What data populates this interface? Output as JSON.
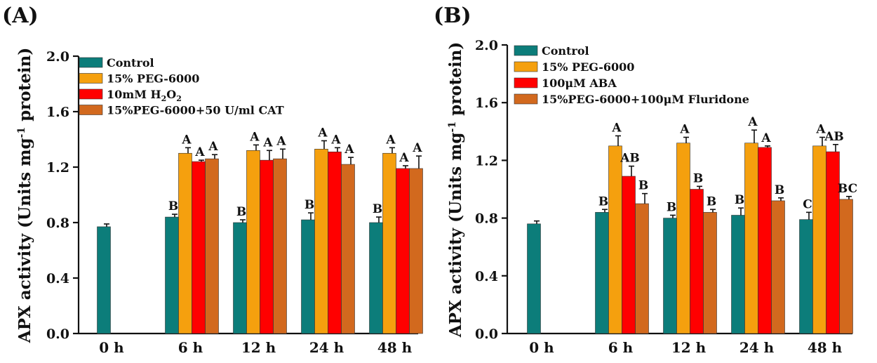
{
  "chart_data": [
    {
      "panel": "(A)",
      "type": "bar",
      "ylabel_main": "APX activity (Units mg",
      "ylabel_sup": "-1",
      "ylabel_tail": " protein)",
      "ylim": [
        0,
        2.0
      ],
      "yticks": [
        "0.0",
        "0.4",
        "0.8",
        "1.2",
        "1.6",
        "2.0"
      ],
      "categories": [
        "0 h",
        "6 h",
        "12 h",
        "24 h",
        "48 h"
      ],
      "series": [
        {
          "name": "Control",
          "legend_main": "Control",
          "color": "#0c7d7a",
          "values": [
            0.77,
            0.84,
            0.8,
            0.82,
            0.8
          ],
          "errors": [
            0.02,
            0.02,
            0.02,
            0.05,
            0.04
          ],
          "letters": [
            "",
            "B",
            "B",
            "B",
            "B"
          ]
        },
        {
          "name": "15% PEG-6000",
          "legend_main": "15% PEG-6000",
          "color": "#f5a00e",
          "values": [
            null,
            1.3,
            1.32,
            1.33,
            1.3
          ],
          "errors": [
            0,
            0.04,
            0.04,
            0.06,
            0.04
          ],
          "letters": [
            "",
            "A",
            "A",
            "A",
            "A"
          ]
        },
        {
          "name": "10mM H2O2",
          "legend_main": "10mM H",
          "legend_sub": "2",
          "legend_tail": "O",
          "legend_sub2": "2",
          "color": "#ff0000",
          "values": [
            null,
            1.24,
            1.25,
            1.31,
            1.19
          ],
          "errors": [
            0,
            0.01,
            0.07,
            0.03,
            0.02
          ],
          "letters": [
            "",
            "A",
            "A",
            "A",
            "A"
          ]
        },
        {
          "name": "15%PEG-6000+50 U/ml CAT",
          "legend_main": "15%PEG-6000+50 U/ml CAT",
          "color": "#d2691e",
          "values": [
            null,
            1.26,
            1.26,
            1.22,
            1.19
          ],
          "errors": [
            0,
            0.03,
            0.07,
            0.05,
            0.09
          ],
          "letters": [
            "",
            "A",
            "A",
            "A",
            "A"
          ]
        }
      ]
    },
    {
      "panel": "(B)",
      "type": "bar",
      "ylabel_main": "APX activity (Units mg",
      "ylabel_sup": "-1",
      "ylabel_tail": " protein)",
      "ylim": [
        0,
        2.0
      ],
      "yticks": [
        "0.0",
        "0.4",
        "0.8",
        "1.2",
        "1.6",
        "2.0"
      ],
      "categories": [
        "0 h",
        "6 h",
        "12 h",
        "24 h",
        "48 h"
      ],
      "series": [
        {
          "name": "Control",
          "legend_main": "Control",
          "color": "#0c7d7a",
          "values": [
            0.76,
            0.84,
            0.8,
            0.82,
            0.79
          ],
          "errors": [
            0.02,
            0.02,
            0.02,
            0.05,
            0.05
          ],
          "letters": [
            "",
            "B",
            "B",
            "B",
            "C"
          ]
        },
        {
          "name": "15% PEG-6000",
          "legend_main": "15% PEG-6000",
          "color": "#f5a00e",
          "values": [
            null,
            1.3,
            1.32,
            1.32,
            1.3
          ],
          "errors": [
            0,
            0.07,
            0.04,
            0.09,
            0.06
          ],
          "letters": [
            "",
            "A",
            "A",
            "A",
            "A"
          ]
        },
        {
          "name": "100μM ABA",
          "legend_main": "100μM ABA",
          "color": "#ff0000",
          "values": [
            null,
            1.09,
            1.0,
            1.29,
            1.26
          ],
          "errors": [
            0,
            0.07,
            0.02,
            0.01,
            0.05
          ],
          "letters": [
            "",
            "AB",
            "B",
            "A",
            "AB"
          ]
        },
        {
          "name": "15%PEG-6000+100μM Fluridone",
          "legend_main": "15%PEG-6000+100μM Fluridone",
          "color": "#d2691e",
          "values": [
            null,
            0.9,
            0.84,
            0.92,
            0.93
          ],
          "errors": [
            0,
            0.07,
            0.02,
            0.02,
            0.02
          ],
          "letters": [
            "",
            "B",
            "B",
            "B",
            "BC"
          ]
        }
      ]
    }
  ]
}
